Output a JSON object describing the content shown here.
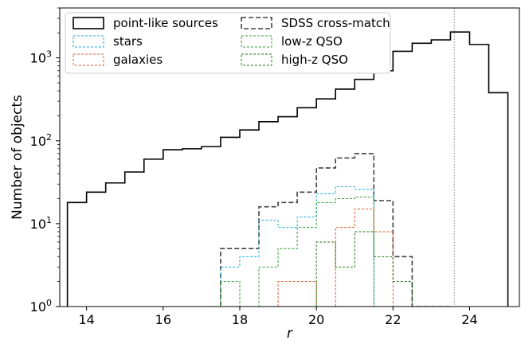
{
  "chart_data": {
    "type": "histogram",
    "xlabel": "r",
    "ylabel": "Number of objects",
    "xlim": [
      13.3,
      25.3
    ],
    "ylim": [
      1,
      4000
    ],
    "y_scale": "log",
    "grid": false,
    "legend_position": "top-left",
    "x_ticks": [
      14,
      16,
      18,
      20,
      22,
      24
    ],
    "y_ticks": [
      1,
      10,
      100,
      1000
    ],
    "y_tick_labels": [
      "10^0",
      "10^1",
      "10^2",
      "10^3"
    ],
    "bin_edges": [
      13.5,
      14.0,
      14.5,
      15.0,
      15.5,
      16.0,
      16.5,
      17.0,
      17.5,
      18.0,
      18.5,
      19.0,
      19.5,
      20.0,
      20.5,
      21.0,
      21.5,
      22.0,
      22.5,
      23.0,
      23.5,
      24.0,
      24.5,
      25.0
    ],
    "vline_x": 23.6,
    "series": [
      {
        "name": "point-like sources",
        "color": "#000000",
        "style": "solid",
        "values": [
          18,
          24,
          31,
          42,
          60,
          78,
          80,
          85,
          110,
          135,
          170,
          195,
          250,
          320,
          420,
          550,
          700,
          1200,
          1500,
          1650,
          2050,
          1450,
          380
        ]
      },
      {
        "name": "SDSS cross-match",
        "color": "#404040",
        "style": "dashed",
        "values": [
          0,
          0,
          0,
          0,
          0,
          0,
          0,
          0,
          5,
          5,
          16,
          18,
          24,
          47,
          62,
          70,
          19,
          4,
          1,
          1,
          0,
          0,
          0
        ]
      },
      {
        "name": "stars",
        "color": "#1ca8e0",
        "style": "dashed",
        "values": [
          0,
          0,
          0,
          0,
          0,
          0,
          0,
          0,
          3,
          4,
          11,
          9,
          12,
          23,
          28,
          26,
          0,
          0,
          0,
          0,
          0,
          0,
          0
        ]
      },
      {
        "name": "low-z QSO",
        "color": "#2ca02c",
        "style": "dashed",
        "values": [
          0,
          0,
          0,
          0,
          0,
          0,
          0,
          0,
          2,
          0,
          3,
          5,
          9,
          18,
          20,
          21,
          0,
          0,
          0,
          0,
          0,
          0,
          0
        ]
      },
      {
        "name": "galaxies",
        "color": "#e05a2b",
        "style": "dashed",
        "values": [
          0,
          0,
          0,
          0,
          0,
          0,
          0,
          0,
          0,
          0,
          0,
          2,
          2,
          0,
          9,
          15,
          8,
          0,
          0,
          0,
          0,
          0,
          0
        ]
      },
      {
        "name": "high-z QSO",
        "color": "#1f7a1f",
        "style": "dashed",
        "values": [
          0,
          0,
          0,
          0,
          0,
          0,
          0,
          0,
          0,
          0,
          0,
          0,
          0,
          6,
          3,
          8,
          4,
          2,
          0,
          0,
          0,
          0,
          0
        ]
      }
    ],
    "legend": [
      {
        "series": "point-like sources",
        "label": "point-like sources"
      },
      {
        "series": "SDSS cross-match",
        "label": "SDSS cross-match"
      },
      {
        "series": "stars",
        "label": "stars"
      },
      {
        "series": "low-z QSO",
        "label": "low-z QSO"
      },
      {
        "series": "galaxies",
        "label": "galaxies"
      },
      {
        "series": "high-z QSO",
        "label": "high-z QSO"
      }
    ]
  }
}
